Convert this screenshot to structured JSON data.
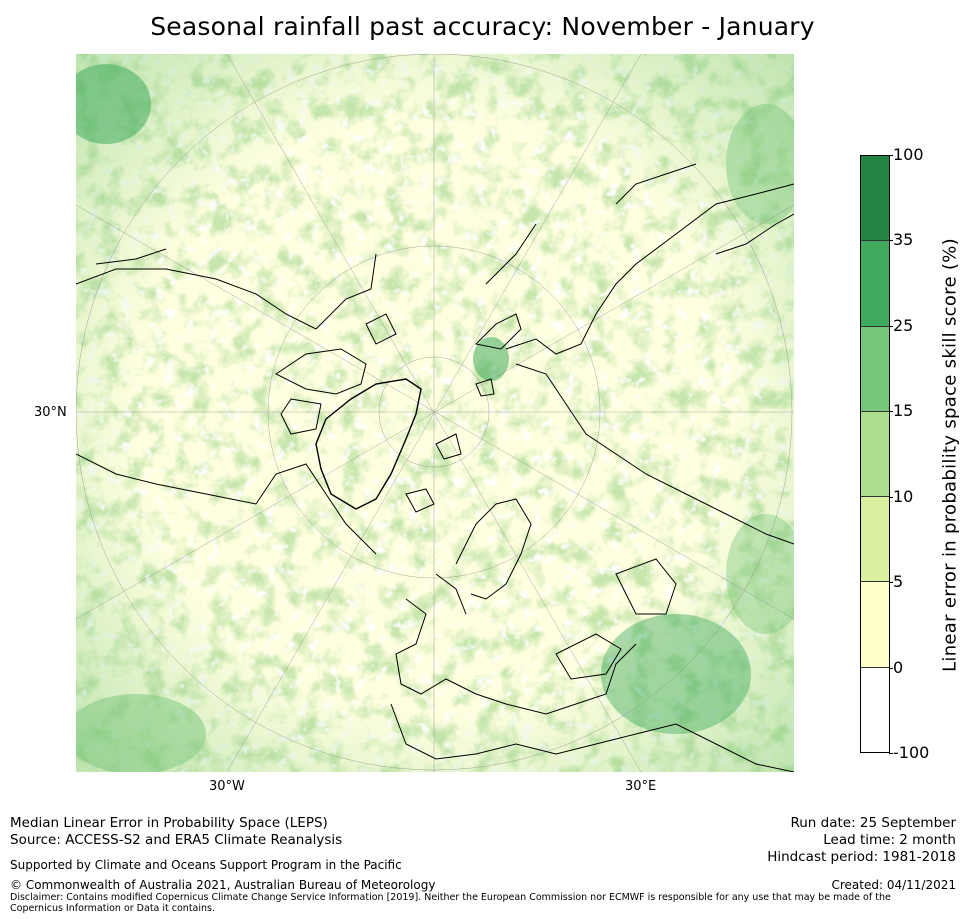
{
  "title": "Seasonal rainfall past accuracy: November - January",
  "map": {
    "projection": "north-polar-stereographic",
    "labels": {
      "lat_30n": "30°N",
      "lon_30w": "30°W",
      "lon_30e": "30°E"
    },
    "colors": {
      "background": "#ffffe0",
      "coast": "#000000",
      "grid": "#888888"
    }
  },
  "colorbar": {
    "label": "Linear error in probability space skill score (%)",
    "ticks": [
      "100",
      "35",
      "25",
      "15",
      "10",
      "5",
      "0",
      "-100"
    ],
    "segments": [
      {
        "from": "35",
        "to": "100",
        "color": "#238443"
      },
      {
        "from": "25",
        "to": "35",
        "color": "#41ab5d"
      },
      {
        "from": "15",
        "to": "25",
        "color": "#78c679"
      },
      {
        "from": "10",
        "to": "15",
        "color": "#addd8e"
      },
      {
        "from": "5",
        "to": "10",
        "color": "#d9f0a3"
      },
      {
        "from": "0",
        "to": "5",
        "color": "#ffffcc"
      },
      {
        "from": "-100",
        "to": "0",
        "color": "#ffffff"
      }
    ]
  },
  "footer": {
    "line1": "Median Linear Error in Probability Space (LEPS)",
    "line2": "Source: ACCESS-S2 and ERA5 Climate Reanalysis",
    "support": "Supported by Climate and Oceans Support Program in the Pacific",
    "copyright": "© Commonwealth of Australia 2021, Australian Bureau of Meteorology",
    "disclaimer": "Disclaimer: Contains modified Copernicus Climate Change Service Information [2019]. Neither the European Commission nor ECMWF is responsible for any use that may be made of the Copernicus Information or Data it contains.",
    "run_date": "Run date: 25 September",
    "lead_time": "Lead time: 2 month",
    "hindcast": "Hindcast period: 1981-2018",
    "created": "Created: 04/11/2021"
  }
}
